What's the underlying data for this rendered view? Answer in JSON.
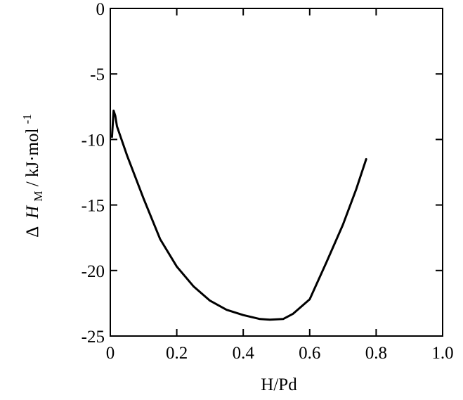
{
  "chart_data": {
    "type": "line",
    "title": "",
    "xlabel": "H/Pd",
    "ylabel": {
      "delta": "Δ",
      "symbol": "H",
      "subscript": "M",
      "unit": "/ kJ·mol",
      "superscript": "-1"
    },
    "xlim": [
      0,
      1.0
    ],
    "ylim": [
      -25,
      0
    ],
    "xticks": [
      0,
      0.2,
      0.4,
      0.6,
      0.8,
      1.0
    ],
    "xtick_labels": [
      "0",
      "0.2",
      "0.4",
      "0.6",
      "0.8",
      "1.0"
    ],
    "yticks": [
      0,
      -5,
      -10,
      -15,
      -20,
      -25
    ],
    "ytick_labels": [
      "0",
      "-5",
      "-10",
      "-15",
      "-20",
      "-25"
    ],
    "grid": false,
    "series": [
      {
        "color": "#000000",
        "x": [
          0.005,
          0.01,
          0.015,
          0.02,
          0.05,
          0.1,
          0.15,
          0.2,
          0.25,
          0.3,
          0.35,
          0.4,
          0.45,
          0.48,
          0.52,
          0.55,
          0.6,
          0.65,
          0.7,
          0.74,
          0.77
        ],
        "y": [
          -9.8,
          -7.8,
          -8.2,
          -9.0,
          -11.2,
          -14.5,
          -17.6,
          -19.7,
          -21.2,
          -22.3,
          -23.0,
          -23.4,
          -23.7,
          -23.75,
          -23.7,
          -23.3,
          -22.2,
          -19.4,
          -16.5,
          -13.8,
          -11.5
        ]
      }
    ]
  }
}
